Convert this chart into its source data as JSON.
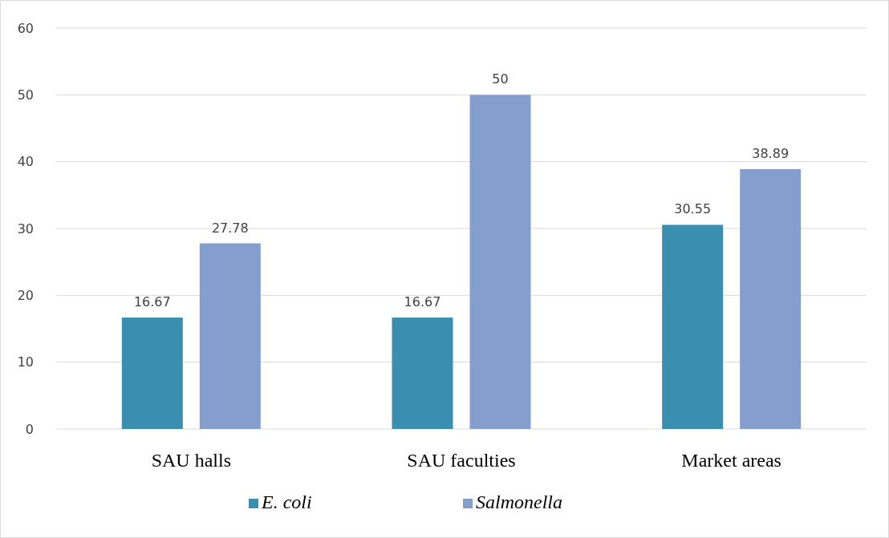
{
  "chart_data": {
    "type": "bar",
    "categories": [
      "SAU halls",
      "SAU faculties",
      "Market areas"
    ],
    "series": [
      {
        "name": "E. coli",
        "color": "#3a8fb1",
        "values": [
          16.67,
          16.67,
          30.55
        ]
      },
      {
        "name": "Salmonella",
        "color": "#849fce",
        "values": [
          27.78,
          50,
          38.89
        ]
      }
    ],
    "ylim": [
      0,
      60
    ],
    "yticks": [
      0,
      10,
      20,
      30,
      40,
      50,
      60
    ],
    "grid": "y",
    "legend": "bottom",
    "data_labels": true
  }
}
